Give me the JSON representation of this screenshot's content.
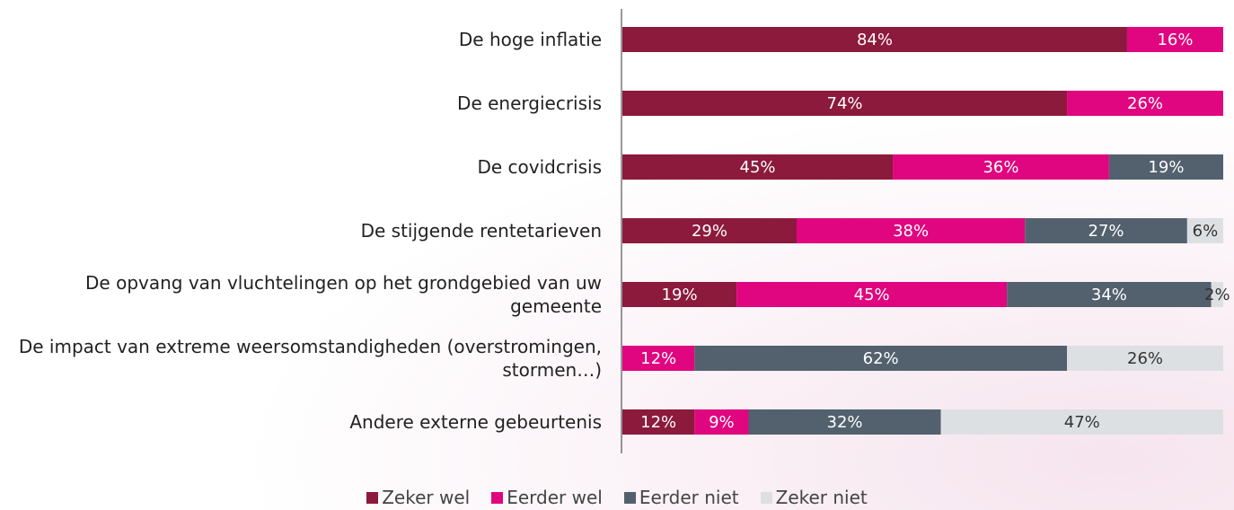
{
  "chart_data": {
    "type": "stacked-bar-horizontal",
    "categories": [
      "De hoge inflatie",
      "De energiecrisis",
      "De covidcrisis",
      "De stijgende rentetarieven",
      "De opvang van vluchtelingen op het grondgebied van uw gemeente",
      "De impact van extreme weersomstandigheden (overstromingen, stormen…)",
      "Andere externe gebeurtenis"
    ],
    "series": [
      {
        "name": "Zeker wel",
        "color": "#8c1a3d",
        "values": [
          84,
          74,
          45,
          29,
          19,
          null,
          12
        ],
        "value_labels": [
          "84%",
          "74%",
          "45%",
          "29%",
          "19%",
          null,
          "12%"
        ]
      },
      {
        "name": "Eerder wel",
        "color": "#e0067f",
        "values": [
          16,
          26,
          36,
          38,
          45,
          12,
          9
        ],
        "value_labels": [
          "16%",
          "26%",
          "36%",
          "38%",
          "45%",
          "12%",
          "9%"
        ]
      },
      {
        "name": "Eerder niet",
        "color": "#53616e",
        "values": [
          null,
          null,
          19,
          27,
          34,
          62,
          32
        ],
        "value_labels": [
          null,
          null,
          "19%",
          "27%",
          "34%",
          "62%",
          "32%"
        ]
      },
      {
        "name": "Zeker niet",
        "color": "#dde0e3",
        "values": [
          null,
          null,
          null,
          6,
          2,
          26,
          47
        ],
        "value_labels": [
          null,
          null,
          null,
          "6%",
          "2%",
          "26%",
          "47%"
        ]
      }
    ],
    "xlim": [
      0,
      100
    ]
  }
}
